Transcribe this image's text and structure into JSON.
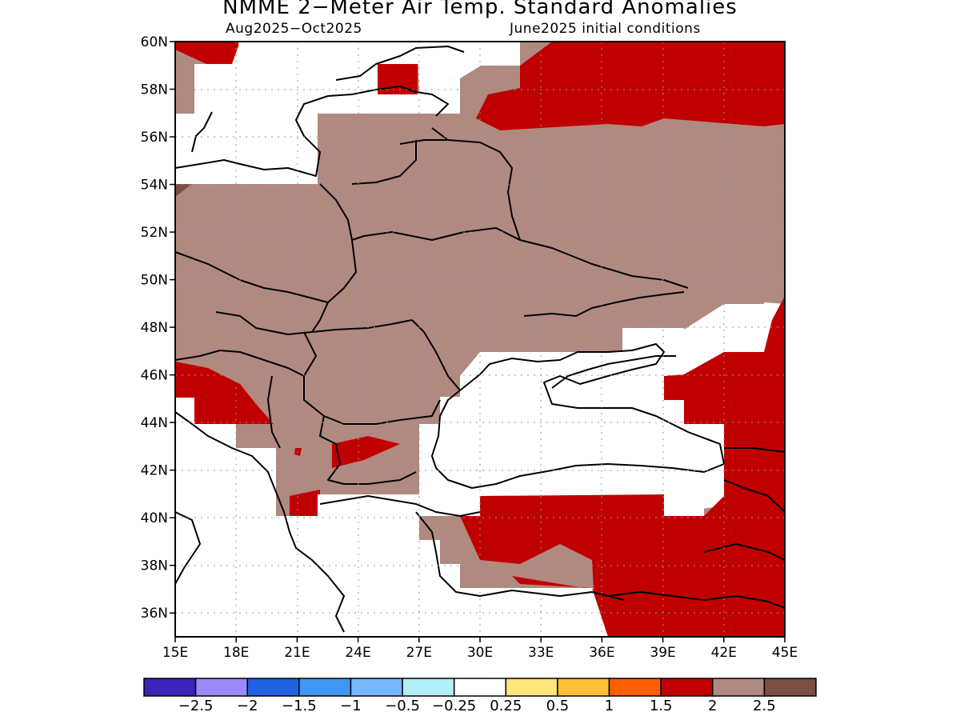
{
  "title": "NMME 2−Meter Air Temp. Standard Anomalies",
  "subtitle_left": "Aug2025−Oct2025",
  "subtitle_right": "June2025 initial conditions",
  "map": {
    "lon_range": [
      15,
      45
    ],
    "lat_range": [
      35,
      60
    ],
    "lat_ticks": [
      {
        "value": 60,
        "label": "60N"
      },
      {
        "value": 58,
        "label": "58N"
      },
      {
        "value": 56,
        "label": "56N"
      },
      {
        "value": 54,
        "label": "54N"
      },
      {
        "value": 52,
        "label": "52N"
      },
      {
        "value": 50,
        "label": "50N"
      },
      {
        "value": 48,
        "label": "48N"
      },
      {
        "value": 46,
        "label": "46N"
      },
      {
        "value": 44,
        "label": "44N"
      },
      {
        "value": 42,
        "label": "42N"
      },
      {
        "value": 40,
        "label": "40N"
      },
      {
        "value": 38,
        "label": "38N"
      },
      {
        "value": 36,
        "label": "36N"
      }
    ],
    "lon_ticks": [
      {
        "value": 15,
        "label": "15E"
      },
      {
        "value": 18,
        "label": "18E"
      },
      {
        "value": 21,
        "label": "21E"
      },
      {
        "value": 24,
        "label": "24E"
      },
      {
        "value": 27,
        "label": "27E"
      },
      {
        "value": 30,
        "label": "30E"
      },
      {
        "value": 33,
        "label": "33E"
      },
      {
        "value": 36,
        "label": "36E"
      },
      {
        "value": 39,
        "label": "39E"
      },
      {
        "value": 42,
        "label": "42E"
      },
      {
        "value": 45,
        "label": "45E"
      }
    ],
    "grid": true
  },
  "colorbar": {
    "colors": [
      "#3b22b8",
      "#9c88f6",
      "#2161e4",
      "#3f96f4",
      "#77b7fb",
      "#b2eefb",
      "#ffffff",
      "#ffe57a",
      "#ffbf36",
      "#ff5f00",
      "#c00000",
      "#b08a80",
      "#7b4f42"
    ],
    "labels": [
      "−2.5",
      "−2",
      "−1.5",
      "−1",
      "−0.5",
      "−0.25",
      "0.25",
      "0.5",
      "1",
      "1.5",
      "2",
      "2.5"
    ]
  },
  "legend_colors": {
    "brown": "#b08a80",
    "red": "#c00000",
    "dark_brown": "#7b4f42"
  }
}
